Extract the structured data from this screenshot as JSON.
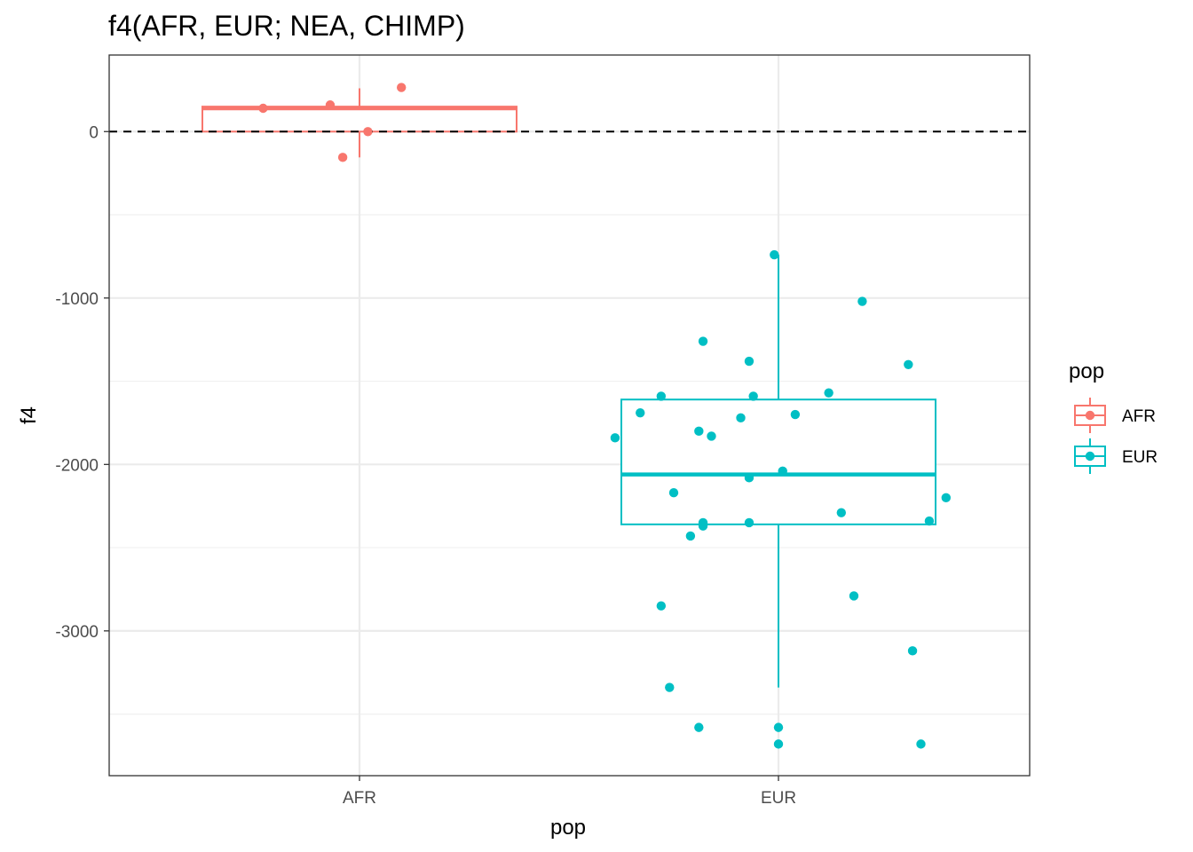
{
  "chart_data": {
    "type": "boxplot",
    "title": "f4(AFR, EUR; NEA, CHIMP)",
    "xlabel": "pop",
    "ylabel": "f4",
    "categories": [
      "AFR",
      "EUR"
    ],
    "ylim": [
      -3870,
      460
    ],
    "yticks": [
      0,
      -1000,
      -2000,
      -3000
    ],
    "ytick_labels": [
      "0",
      "-1000",
      "-2000",
      "-3000"
    ],
    "reference_line": {
      "y": 0,
      "style": "dashed"
    },
    "grid": true,
    "legend": {
      "title": "pop",
      "position": "right",
      "entries": [
        "AFR",
        "EUR"
      ]
    },
    "colors": {
      "AFR": "#F8766D",
      "EUR": "#00BFC4"
    },
    "boxes": [
      {
        "category": "AFR",
        "whisker_low": -155,
        "q1": 0,
        "median": 140,
        "q3": 150,
        "whisker_high": 260
      },
      {
        "category": "EUR",
        "whisker_low": -3340,
        "q1": -2360,
        "median": -2060,
        "q3": -1610,
        "whisker_high": -740
      }
    ],
    "points": [
      {
        "category": "AFR",
        "jitter": -0.23,
        "y": 140
      },
      {
        "category": "AFR",
        "jitter": -0.07,
        "y": 160
      },
      {
        "category": "AFR",
        "jitter": 0.1,
        "y": 265
      },
      {
        "category": "AFR",
        "jitter": 0.02,
        "y": 0
      },
      {
        "category": "AFR",
        "jitter": -0.04,
        "y": -155
      },
      {
        "category": "EUR",
        "jitter": -0.01,
        "y": -740
      },
      {
        "category": "EUR",
        "jitter": 0.2,
        "y": -1020
      },
      {
        "category": "EUR",
        "jitter": -0.18,
        "y": -1260
      },
      {
        "category": "EUR",
        "jitter": -0.07,
        "y": -1380
      },
      {
        "category": "EUR",
        "jitter": 0.31,
        "y": -1400
      },
      {
        "category": "EUR",
        "jitter": 0.12,
        "y": -1570
      },
      {
        "category": "EUR",
        "jitter": -0.28,
        "y": -1590
      },
      {
        "category": "EUR",
        "jitter": -0.06,
        "y": -1590
      },
      {
        "category": "EUR",
        "jitter": -0.33,
        "y": -1690
      },
      {
        "category": "EUR",
        "jitter": 0.04,
        "y": -1700
      },
      {
        "category": "EUR",
        "jitter": -0.09,
        "y": -1720
      },
      {
        "category": "EUR",
        "jitter": -0.19,
        "y": -1800
      },
      {
        "category": "EUR",
        "jitter": -0.16,
        "y": -1830
      },
      {
        "category": "EUR",
        "jitter": -0.39,
        "y": -1840
      },
      {
        "category": "EUR",
        "jitter": 0.01,
        "y": -2040
      },
      {
        "category": "EUR",
        "jitter": -0.07,
        "y": -2080
      },
      {
        "category": "EUR",
        "jitter": -0.25,
        "y": -2170
      },
      {
        "category": "EUR",
        "jitter": 0.4,
        "y": -2200
      },
      {
        "category": "EUR",
        "jitter": 0.15,
        "y": -2290
      },
      {
        "category": "EUR",
        "jitter": 0.36,
        "y": -2340
      },
      {
        "category": "EUR",
        "jitter": -0.18,
        "y": -2350
      },
      {
        "category": "EUR",
        "jitter": -0.07,
        "y": -2350
      },
      {
        "category": "EUR",
        "jitter": -0.18,
        "y": -2370
      },
      {
        "category": "EUR",
        "jitter": -0.21,
        "y": -2430
      },
      {
        "category": "EUR",
        "jitter": 0.18,
        "y": -2790
      },
      {
        "category": "EUR",
        "jitter": -0.28,
        "y": -2850
      },
      {
        "category": "EUR",
        "jitter": 0.32,
        "y": -3120
      },
      {
        "category": "EUR",
        "jitter": -0.26,
        "y": -3340
      },
      {
        "category": "EUR",
        "jitter": -0.19,
        "y": -3580
      },
      {
        "category": "EUR",
        "jitter": 0.0,
        "y": -3580
      },
      {
        "category": "EUR",
        "jitter": 0.0,
        "y": -3680
      },
      {
        "category": "EUR",
        "jitter": 0.34,
        "y": -3680
      }
    ]
  }
}
